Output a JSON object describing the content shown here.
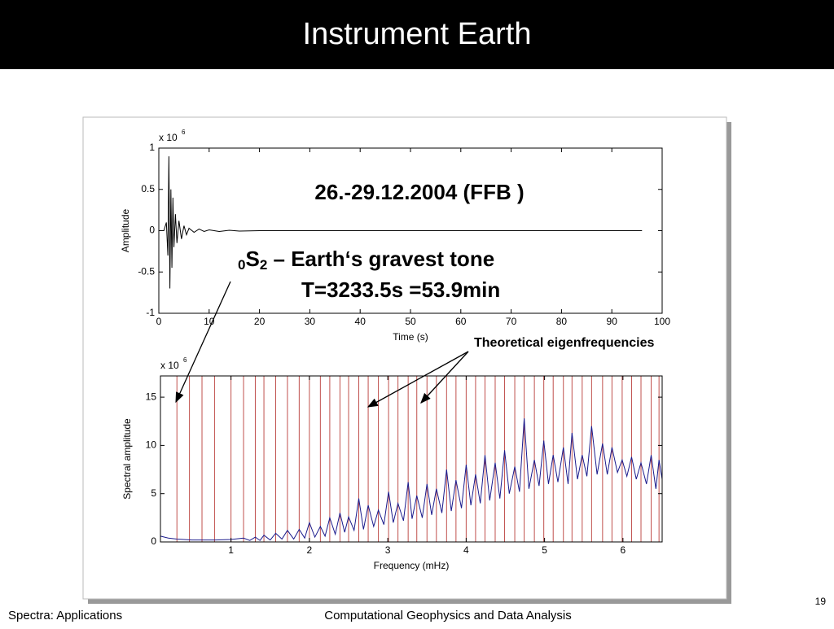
{
  "slide": {
    "title": "Instrument Earth",
    "annotation_date": "26.-29.12.2004 (FFB )",
    "annotation_mode_prefix": "0",
    "annotation_mode_letter": "S",
    "annotation_mode_suffix": "2",
    "annotation_mode_text": " – Earth‘s gravest tone",
    "annotation_period": "T=3233.5s =53.9min",
    "annotation_eigen": "Theoretical eigenfrequencies",
    "footer_left": "Spectra: Applications",
    "footer_center": "Computational Geophysics and Data Analysis",
    "page_number": "19"
  },
  "chart_data": [
    {
      "type": "line",
      "x_label": "Time (s)",
      "y_label": "Amplitude",
      "y_exponent_base": "x 10",
      "y_exponent_power": "6",
      "color": "#000000",
      "x": [
        0,
        1,
        1.5,
        1.8,
        2,
        2.2,
        2.4,
        2.6,
        2.8,
        3,
        3.3,
        3.6,
        4,
        4.5,
        5,
        5.5,
        6,
        7,
        8,
        9,
        10,
        12,
        14,
        16,
        20,
        30,
        40,
        60,
        80,
        96
      ],
      "values": [
        0,
        0,
        0.1,
        -0.3,
        0.9,
        -0.7,
        0.5,
        -0.45,
        0.4,
        -0.2,
        0.2,
        -0.15,
        0.12,
        -0.1,
        0.06,
        -0.05,
        0.03,
        -0.02,
        0.02,
        -0.01,
        0.01,
        -0.01,
        0.005,
        -0.005,
        0,
        0,
        0,
        0,
        0,
        0
      ],
      "xlim": [
        0,
        100
      ],
      "xticks": [
        0,
        10,
        20,
        30,
        40,
        50,
        60,
        70,
        80,
        90,
        100
      ],
      "ylim": [
        -1,
        1
      ],
      "yticks": [
        -1,
        -0.5,
        0,
        0.5,
        1
      ]
    },
    {
      "type": "line",
      "x_label": "Frequency (mHz)",
      "y_label": "Spectral amplitude",
      "y_exponent_base": "x 10",
      "y_exponent_power": "6",
      "color": "#1a1a8c",
      "eigen_color": "#c0504d",
      "eigenfrequencies": [
        0.31,
        0.47,
        0.63,
        0.79,
        1.0,
        1.16,
        1.31,
        1.42,
        1.57,
        1.72,
        1.87,
        2.0,
        2.14,
        2.26,
        2.39,
        2.5,
        2.63,
        2.75,
        2.88,
        3.01,
        3.13,
        3.26,
        3.37,
        3.5,
        3.62,
        3.75,
        3.87,
        4.0,
        4.12,
        4.24,
        4.37,
        4.49,
        4.62,
        4.74,
        4.87,
        4.99,
        5.11,
        5.24,
        5.35,
        5.48,
        5.6,
        5.74,
        5.86,
        5.99,
        6.11,
        6.23,
        6.36,
        6.46
      ],
      "x": [
        0.1,
        0.2,
        0.31,
        0.5,
        0.8,
        1.0,
        1.16,
        1.24,
        1.31,
        1.37,
        1.42,
        1.5,
        1.57,
        1.65,
        1.72,
        1.8,
        1.87,
        1.94,
        2.0,
        2.07,
        2.14,
        2.2,
        2.26,
        2.33,
        2.39,
        2.45,
        2.5,
        2.57,
        2.63,
        2.69,
        2.75,
        2.82,
        2.88,
        2.95,
        3.01,
        3.07,
        3.13,
        3.2,
        3.26,
        3.31,
        3.37,
        3.44,
        3.5,
        3.56,
        3.62,
        3.69,
        3.75,
        3.81,
        3.87,
        3.94,
        4.0,
        4.06,
        4.12,
        4.18,
        4.24,
        4.3,
        4.37,
        4.43,
        4.49,
        4.55,
        4.62,
        4.68,
        4.74,
        4.8,
        4.87,
        4.93,
        4.99,
        5.05,
        5.11,
        5.17,
        5.24,
        5.3,
        5.35,
        5.42,
        5.48,
        5.54,
        5.6,
        5.67,
        5.74,
        5.8,
        5.86,
        5.93,
        5.99,
        6.05,
        6.11,
        6.17,
        6.23,
        6.3,
        6.36,
        6.42,
        6.46,
        6.5
      ],
      "values": [
        0.6,
        0.4,
        0.3,
        0.2,
        0.2,
        0.25,
        0.4,
        0.15,
        0.5,
        0.15,
        0.7,
        0.2,
        0.9,
        0.3,
        1.2,
        0.3,
        1.3,
        0.4,
        2.0,
        0.5,
        1.6,
        0.6,
        2.5,
        0.8,
        3.0,
        1.0,
        2.6,
        1.2,
        4.5,
        1.3,
        3.8,
        1.6,
        3.3,
        1.8,
        5.2,
        2.0,
        4.0,
        2.2,
        6.2,
        2.4,
        4.8,
        2.5,
        6.0,
        2.8,
        5.5,
        3.0,
        7.5,
        3.2,
        6.4,
        3.5,
        8.0,
        3.8,
        7.0,
        4.0,
        9.0,
        4.3,
        8.2,
        4.5,
        9.5,
        5.0,
        7.8,
        5.2,
        12.8,
        5.5,
        8.5,
        5.8,
        10.5,
        6.0,
        9.0,
        6.2,
        9.8,
        6.0,
        11.3,
        6.5,
        9.0,
        6.8,
        12.0,
        7.0,
        10.2,
        7.0,
        9.8,
        7.2,
        8.5,
        6.8,
        8.8,
        6.5,
        8.2,
        6.0,
        9.0,
        5.5,
        8.5,
        6.5
      ],
      "xlim": [
        0.1,
        6.5
      ],
      "xticks": [
        1,
        2,
        3,
        4,
        5,
        6
      ],
      "ylim": [
        0,
        17.2
      ],
      "yticks": [
        0,
        5,
        10,
        15
      ]
    }
  ]
}
